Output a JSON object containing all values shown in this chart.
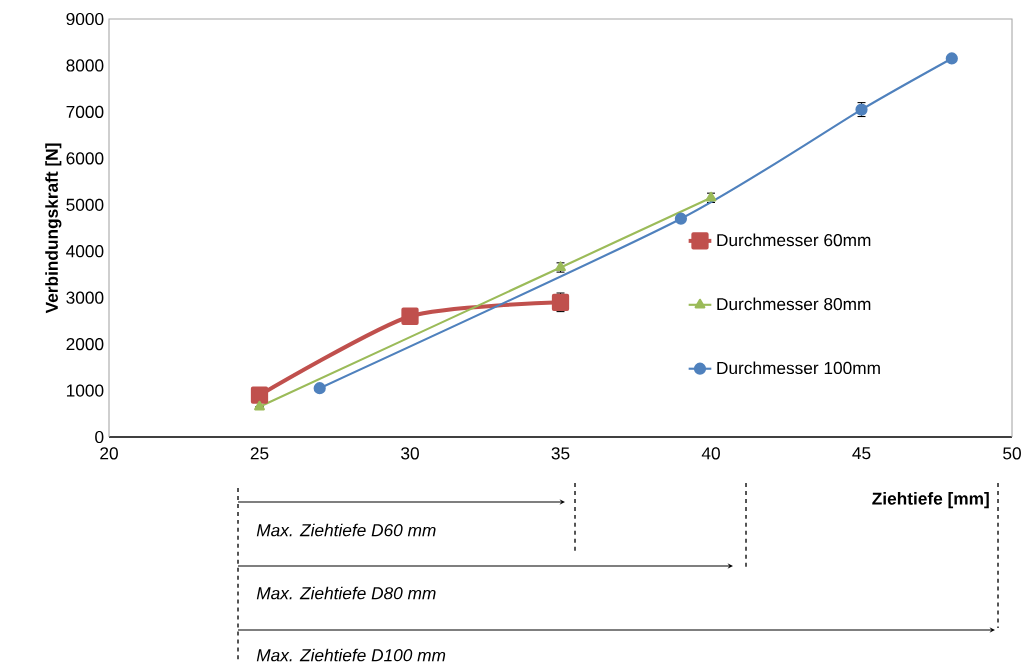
{
  "chart_data": {
    "type": "line",
    "xlabel": "Ziehtiefe [mm]",
    "ylabel": "Verbindungskraft [N]",
    "xlim": [
      20,
      50
    ],
    "xticks": [
      20,
      25,
      30,
      35,
      40,
      45,
      50
    ],
    "ylim": [
      0,
      9000
    ],
    "yticks": [
      0,
      1000,
      2000,
      3000,
      4000,
      5000,
      6000,
      7000,
      8000,
      9000
    ],
    "legend": "right",
    "grid": false,
    "series": [
      {
        "name": "Durchmesser 60mm",
        "color": "#c0504d",
        "marker": "square",
        "x": [
          25,
          30,
          35
        ],
        "values": [
          900,
          2600,
          2900
        ],
        "errors": [
          null,
          null,
          200
        ]
      },
      {
        "name": "Durchmesser 80mm",
        "color": "#9bbb59",
        "marker": "triangle",
        "x": [
          25,
          35,
          40
        ],
        "values": [
          650,
          3650,
          5150
        ],
        "errors": [
          null,
          100,
          100
        ]
      },
      {
        "name": "Durchmesser 100mm",
        "color": "#4f81bd",
        "marker": "circle",
        "x": [
          27,
          39,
          45,
          48
        ],
        "values": [
          1050,
          4700,
          7050,
          8150
        ],
        "errors": [
          null,
          null,
          150,
          null
        ]
      }
    ],
    "annotations": [
      "*Max. Ziehtiefe D60 mm*",
      "*Max. Ziehtiefe D80 mm*",
      "*Max. Ziehtiefe D100 mm*"
    ]
  }
}
